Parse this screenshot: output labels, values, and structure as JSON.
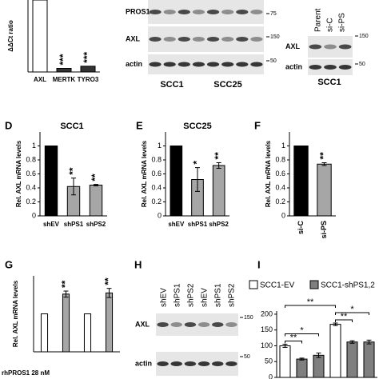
{
  "chart_data": [
    {
      "type": "bar",
      "ylabel": "ΔΔCt ratio",
      "categories": [
        "AXL",
        "MERTK",
        "TYRO3"
      ],
      "values": [
        1,
        0.05,
        0.08
      ],
      "colors": [
        "#ffffff",
        "#333333",
        "#333333"
      ],
      "annotations": [
        null,
        "***",
        "***"
      ],
      "ylim": [
        0,
        1
      ]
    },
    {
      "type": "bar",
      "panel": "D",
      "title": "SCC1",
      "ylabel": "Rel. AXL mRNA levels",
      "categories": [
        "shEV",
        "shPS1",
        "shPS2"
      ],
      "values": [
        1,
        0.42,
        0.44
      ],
      "errors": [
        null,
        0.12,
        0.01
      ],
      "colors": [
        "#000000",
        "#a6a6a6",
        "#a6a6a6"
      ],
      "annotations": [
        null,
        "**",
        "**"
      ],
      "ylim": [
        0,
        1.2
      ],
      "yticks": [
        0,
        0.2,
        0.4,
        0.6,
        0.8,
        1
      ]
    },
    {
      "type": "bar",
      "panel": "E",
      "title": "SCC25",
      "ylabel": "Rel. AXL mRNA levels",
      "categories": [
        "shEV",
        "shPS1",
        "shPS2"
      ],
      "values": [
        1,
        0.52,
        0.72
      ],
      "errors": [
        null,
        0.17,
        0.04
      ],
      "colors": [
        "#000000",
        "#a6a6a6",
        "#a6a6a6"
      ],
      "annotations": [
        null,
        "*",
        "**"
      ],
      "ylim": [
        0,
        1.2
      ],
      "yticks": [
        0,
        0.2,
        0.4,
        0.6,
        0.8,
        1
      ]
    },
    {
      "type": "bar",
      "panel": "F",
      "ylabel": "Rel. AXL mRNA levels",
      "categories": [
        "si-C",
        "si-PS"
      ],
      "values": [
        1,
        0.74
      ],
      "errors": [
        null,
        0.02
      ],
      "colors": [
        "#000000",
        "#a6a6a6"
      ],
      "annotations": [
        null,
        "**"
      ],
      "ylim": [
        0,
        1.2
      ],
      "yticks": [
        0,
        0.2,
        0.4,
        0.6,
        0.8,
        1
      ]
    },
    {
      "type": "bar",
      "panel": "G",
      "ylabel": "Rel. AXL mRNA levels",
      "xlabel": "rhPROS1 28 nM",
      "categories": [
        null,
        null,
        null,
        null
      ],
      "values": [
        1,
        1.52,
        1,
        1.55
      ],
      "errors": [
        null,
        0.08,
        null,
        0.12
      ],
      "colors": [
        "#ffffff",
        "#a6a6a6",
        "#ffffff",
        "#a6a6a6"
      ],
      "annotations": [
        null,
        "**",
        null,
        "**"
      ],
      "ylim": [
        0,
        2
      ]
    },
    {
      "type": "bar",
      "panel": "I",
      "values": [
        100,
        58,
        70,
        168,
        112,
        112
      ],
      "errors": [
        5,
        3,
        7,
        4,
        4,
        6
      ],
      "colors": [
        "#ffffff",
        "#7f7f7f",
        "#7f7f7f",
        "#ffffff",
        "#7f7f7f",
        "#7f7f7f"
      ],
      "legend": [
        {
          "name": "SCC1-EV",
          "color": "#ffffff"
        },
        {
          "name": "SCC1-shPS1,2",
          "color": "#7f7f7f"
        }
      ],
      "brackets": [
        {
          "from": 0,
          "to": 1,
          "label": "**"
        },
        {
          "from": 0,
          "to": 2,
          "label": "*"
        },
        {
          "from": 0,
          "to": 3,
          "label": "**"
        },
        {
          "from": 3,
          "to": 4,
          "label": "**"
        },
        {
          "from": 3,
          "to": 5,
          "label": "*"
        }
      ],
      "ylim": [
        0,
        210
      ],
      "yticks": [
        0,
        50,
        100,
        150,
        200
      ]
    }
  ],
  "blots": [
    {
      "rows": [
        "PROS1",
        "AXL",
        "actin"
      ],
      "markers": [
        75,
        150,
        50
      ],
      "groups": [
        "SCC1",
        "SCC25"
      ]
    },
    {
      "lanes": [
        "Parent",
        "si-C",
        "si-PS"
      ],
      "rows": [
        "AXL",
        "actin"
      ],
      "markers": [
        150,
        50
      ],
      "group": "SCC1"
    },
    {
      "panel": "H",
      "lanes": [
        "shEV",
        "shPS1",
        "shPS2",
        "shEV",
        "shPS1",
        "shPS2"
      ],
      "rows": [
        "AXL",
        "actin"
      ],
      "markers": [
        150,
        50
      ]
    }
  ]
}
